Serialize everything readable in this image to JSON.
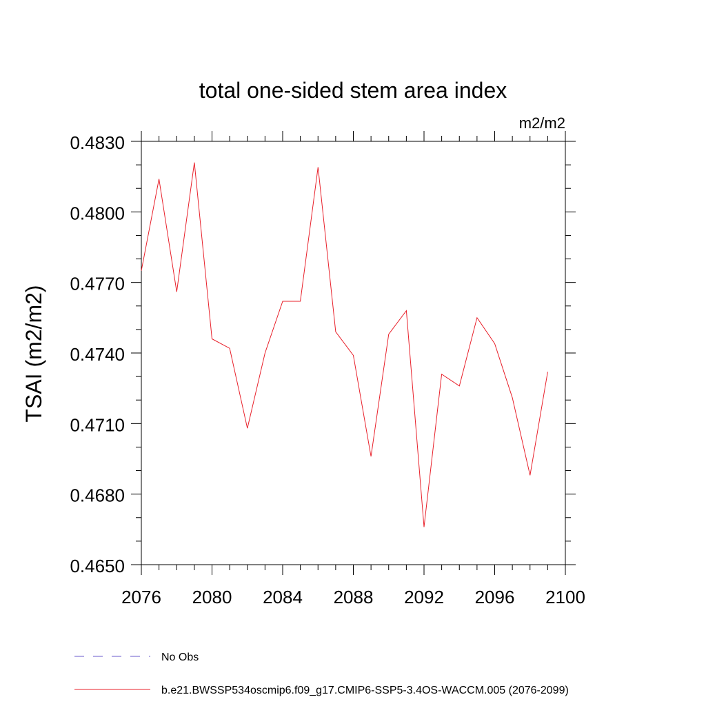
{
  "chart_data": {
    "type": "line",
    "title": "total one-sided stem area index",
    "units": "m2/m2",
    "ylabel": "TSAI  (m2/m2)",
    "xlabel": "",
    "xlim": [
      2076,
      2100
    ],
    "ylim": [
      0.465,
      0.483
    ],
    "xticks": [
      2076,
      2080,
      2084,
      2088,
      2092,
      2096,
      2100
    ],
    "yticks": [
      0.465,
      0.468,
      0.471,
      0.474,
      0.477,
      0.48,
      0.483
    ],
    "ytick_labels": [
      "0.4650",
      "0.4680",
      "0.4710",
      "0.4740",
      "0.4770",
      "0.4800",
      "0.4830"
    ],
    "grid": false,
    "legend_placement": "bottom",
    "series": [
      {
        "name": "b.e21.BWSSP534oscmip6.f09_g17.CMIP6-SSP5-3.4OS-WACCM.005 (2076-2099)",
        "color": "#e8202a",
        "style": "solid",
        "x": [
          2076,
          2077,
          2078,
          2079,
          2080,
          2081,
          2082,
          2083,
          2084,
          2085,
          2086,
          2087,
          2088,
          2089,
          2090,
          2091,
          2092,
          2093,
          2094,
          2095,
          2096,
          2097,
          2098,
          2099
        ],
        "y": [
          0.4775,
          0.4814,
          0.4766,
          0.4821,
          0.4746,
          0.4742,
          0.4708,
          0.474,
          0.4762,
          0.4762,
          0.4819,
          0.4749,
          0.4739,
          0.4696,
          0.4748,
          0.4758,
          0.4666,
          0.4731,
          0.4726,
          0.4755,
          0.4744,
          0.4721,
          0.4688,
          0.4732
        ]
      }
    ],
    "legend": [
      {
        "label": "No Obs",
        "color": "#6a5acd",
        "style": "dashed"
      },
      {
        "label": "b.e21.BWSSP534oscmip6.f09_g17.CMIP6-SSP5-3.4OS-WACCM.005 (2076-2099)",
        "color": "#e8202a",
        "style": "solid"
      }
    ]
  }
}
